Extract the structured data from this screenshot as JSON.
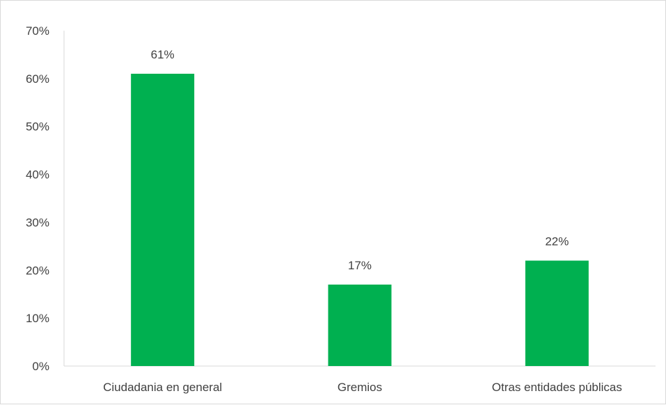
{
  "chart_data": {
    "type": "bar",
    "title": "",
    "xlabel": "",
    "ylabel": "",
    "categories": [
      "Ciudadania en general",
      "Gremios",
      "Otras entidades públicas"
    ],
    "values": [
      61,
      17,
      22
    ],
    "data_labels": [
      "61%",
      "17%",
      "22%"
    ],
    "ylim": [
      0,
      70
    ],
    "yticks": [
      0,
      10,
      20,
      30,
      40,
      50,
      60,
      70
    ],
    "ytick_labels": [
      "0%",
      "10%",
      "20%",
      "30%",
      "40%",
      "50%",
      "60%",
      "70%"
    ],
    "grid": false,
    "legend": "none",
    "bar_color": "#00B050",
    "axis_color": "#d9d9d9",
    "text_color": "#404040"
  }
}
